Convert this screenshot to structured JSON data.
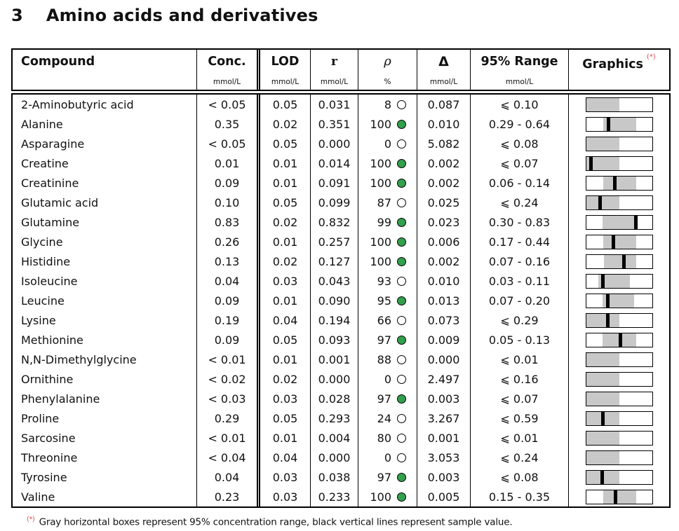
{
  "title": {
    "number": "3",
    "text": "Amino acids and derivatives"
  },
  "columns": [
    {
      "key": "compound",
      "label": "Compound",
      "unit": ""
    },
    {
      "key": "conc",
      "label": "Conc.",
      "unit": "mmol/L"
    },
    {
      "key": "lod",
      "label": "LOD",
      "unit": "mmol/L"
    },
    {
      "key": "r",
      "label": "r",
      "unit": "mmol/L"
    },
    {
      "key": "rho",
      "label": "ρ",
      "unit": "%"
    },
    {
      "key": "delta",
      "label": "Δ",
      "unit": "mmol/L"
    },
    {
      "key": "range",
      "label": "95% Range",
      "unit": "mmol/L"
    },
    {
      "key": "graphics",
      "label": "Graphics",
      "unit": "",
      "marker": "(*)"
    }
  ],
  "rows": [
    {
      "compound": "2-Aminobutyric acid",
      "conc": "< 0.05",
      "lod": "0.05",
      "r": "0.031",
      "rho": "8",
      "rho_filled": false,
      "delta": "0.087",
      "range": "⩽ 0.10",
      "bar": {
        "gray": [
          0.0,
          0.5
        ],
        "line": null
      }
    },
    {
      "compound": "Alanine",
      "conc": "0.35",
      "lod": "0.02",
      "r": "0.351",
      "rho": "100",
      "rho_filled": true,
      "delta": "0.010",
      "range": "0.29 - 0.64",
      "bar": {
        "gray": [
          0.26,
          0.76
        ],
        "line": 0.34
      }
    },
    {
      "compound": "Asparagine",
      "conc": "< 0.05",
      "lod": "0.05",
      "r": "0.000",
      "rho": "0",
      "rho_filled": false,
      "delta": "5.082",
      "range": "⩽ 0.08",
      "bar": {
        "gray": [
          0.0,
          0.5
        ],
        "line": null
      }
    },
    {
      "compound": "Creatine",
      "conc": "0.01",
      "lod": "0.01",
      "r": "0.014",
      "rho": "100",
      "rho_filled": true,
      "delta": "0.002",
      "range": "⩽ 0.07",
      "bar": {
        "gray": [
          0.0,
          0.5
        ],
        "line": 0.07
      }
    },
    {
      "compound": "Creatinine",
      "conc": "0.09",
      "lod": "0.01",
      "r": "0.091",
      "rho": "100",
      "rho_filled": true,
      "delta": "0.002",
      "range": "0.06 - 0.14",
      "bar": {
        "gray": [
          0.26,
          0.76
        ],
        "line": 0.44
      }
    },
    {
      "compound": "Glutamic acid",
      "conc": "0.10",
      "lod": "0.05",
      "r": "0.099",
      "rho": "87",
      "rho_filled": false,
      "delta": "0.025",
      "range": "⩽ 0.24",
      "bar": {
        "gray": [
          0.0,
          0.5
        ],
        "line": 0.21
      }
    },
    {
      "compound": "Glutamine",
      "conc": "0.83",
      "lod": "0.02",
      "r": "0.832",
      "rho": "99",
      "rho_filled": true,
      "delta": "0.023",
      "range": "0.30 - 0.83",
      "bar": {
        "gray": [
          0.25,
          0.77
        ],
        "line": 0.75
      }
    },
    {
      "compound": "Glycine",
      "conc": "0.26",
      "lod": "0.01",
      "r": "0.257",
      "rho": "100",
      "rho_filled": true,
      "delta": "0.006",
      "range": "0.17 - 0.44",
      "bar": {
        "gray": [
          0.26,
          0.76
        ],
        "line": 0.42
      }
    },
    {
      "compound": "Histidine",
      "conc": "0.13",
      "lod": "0.02",
      "r": "0.127",
      "rho": "100",
      "rho_filled": true,
      "delta": "0.002",
      "range": "0.07 - 0.16",
      "bar": {
        "gray": [
          0.27,
          0.76
        ],
        "line": 0.57
      }
    },
    {
      "compound": "Isoleucine",
      "conc": "0.04",
      "lod": "0.03",
      "r": "0.043",
      "rho": "93",
      "rho_filled": false,
      "delta": "0.010",
      "range": "0.03 - 0.11",
      "bar": {
        "gray": [
          0.19,
          0.67
        ],
        "line": 0.26
      }
    },
    {
      "compound": "Leucine",
      "conc": "0.09",
      "lod": "0.01",
      "r": "0.090",
      "rho": "95",
      "rho_filled": true,
      "delta": "0.013",
      "range": "0.07 - 0.20",
      "bar": {
        "gray": [
          0.25,
          0.73
        ],
        "line": 0.33
      }
    },
    {
      "compound": "Lysine",
      "conc": "0.19",
      "lod": "0.04",
      "r": "0.194",
      "rho": "66",
      "rho_filled": false,
      "delta": "0.073",
      "range": "⩽ 0.29",
      "bar": {
        "gray": [
          0.0,
          0.5
        ],
        "line": 0.33
      }
    },
    {
      "compound": "Methionine",
      "conc": "0.09",
      "lod": "0.05",
      "r": "0.093",
      "rho": "97",
      "rho_filled": true,
      "delta": "0.009",
      "range": "0.05 - 0.13",
      "bar": {
        "gray": [
          0.25,
          0.76
        ],
        "line": 0.52
      }
    },
    {
      "compound": "N,N-Dimethylglycine",
      "conc": "< 0.01",
      "lod": "0.01",
      "r": "0.001",
      "rho": "88",
      "rho_filled": false,
      "delta": "0.000",
      "range": "⩽ 0.01",
      "bar": {
        "gray": [
          0.0,
          0.5
        ],
        "line": null
      }
    },
    {
      "compound": "Ornithine",
      "conc": "< 0.02",
      "lod": "0.02",
      "r": "0.000",
      "rho": "0",
      "rho_filled": false,
      "delta": "2.497",
      "range": "⩽ 0.16",
      "bar": {
        "gray": [
          0.0,
          0.5
        ],
        "line": null
      }
    },
    {
      "compound": "Phenylalanine",
      "conc": "< 0.03",
      "lod": "0.03",
      "r": "0.028",
      "rho": "97",
      "rho_filled": true,
      "delta": "0.003",
      "range": "⩽ 0.07",
      "bar": {
        "gray": [
          0.0,
          0.5
        ],
        "line": null
      }
    },
    {
      "compound": "Proline",
      "conc": "0.29",
      "lod": "0.05",
      "r": "0.293",
      "rho": "24",
      "rho_filled": false,
      "delta": "3.267",
      "range": "⩽ 0.59",
      "bar": {
        "gray": [
          0.0,
          0.5
        ],
        "line": 0.25
      }
    },
    {
      "compound": "Sarcosine",
      "conc": "< 0.01",
      "lod": "0.01",
      "r": "0.004",
      "rho": "80",
      "rho_filled": false,
      "delta": "0.001",
      "range": "⩽ 0.01",
      "bar": {
        "gray": [
          0.0,
          0.5
        ],
        "line": null
      }
    },
    {
      "compound": "Threonine",
      "conc": "< 0.04",
      "lod": "0.04",
      "r": "0.000",
      "rho": "0",
      "rho_filled": false,
      "delta": "3.053",
      "range": "⩽ 0.24",
      "bar": {
        "gray": [
          0.0,
          0.5
        ],
        "line": null
      }
    },
    {
      "compound": "Tyrosine",
      "conc": "0.04",
      "lod": "0.03",
      "r": "0.038",
      "rho": "97",
      "rho_filled": true,
      "delta": "0.003",
      "range": "⩽ 0.08",
      "bar": {
        "gray": [
          0.0,
          0.5
        ],
        "line": 0.24
      }
    },
    {
      "compound": "Valine",
      "conc": "0.23",
      "lod": "0.03",
      "r": "0.233",
      "rho": "100",
      "rho_filled": true,
      "delta": "0.005",
      "range": "0.15 - 0.35",
      "bar": {
        "gray": [
          0.26,
          0.76
        ],
        "line": 0.45
      }
    }
  ],
  "footnote": {
    "marker": "(*)",
    "text": "Gray horizontal boxes represent 95% concentration range, black vertical lines represent sample value."
  },
  "colors": {
    "green": "#33a04c",
    "gray_box": "#c8c8c8",
    "red": "#e5484d"
  }
}
